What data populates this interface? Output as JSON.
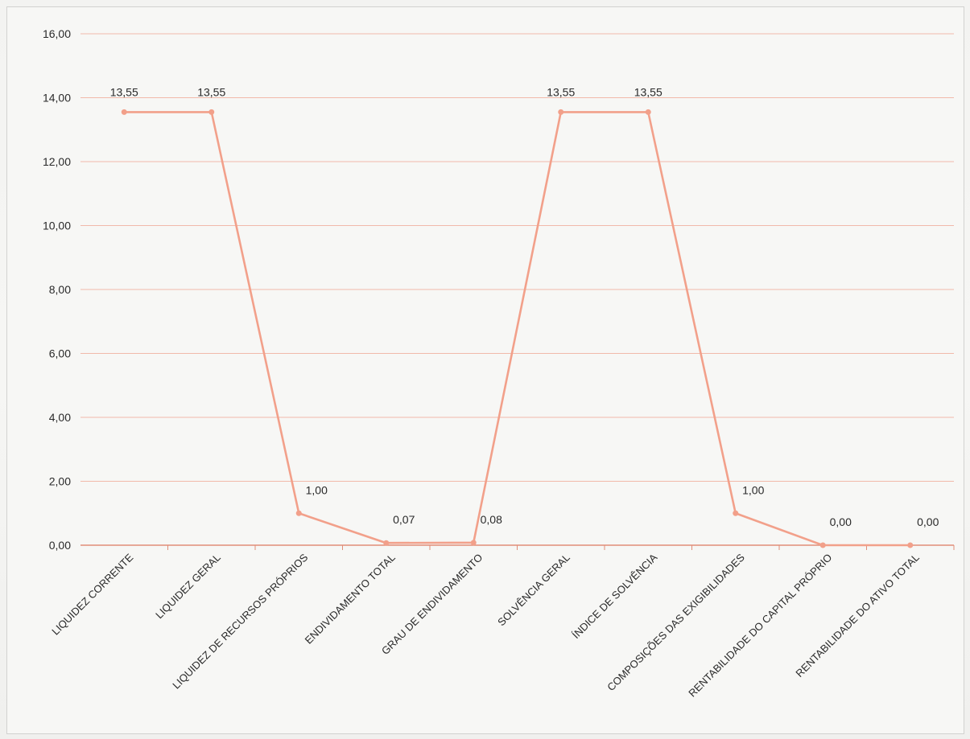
{
  "chart_data": {
    "type": "line",
    "title": "",
    "xlabel": "",
    "ylabel": "",
    "ylim": [
      0,
      16
    ],
    "y_ticks": [
      "0,00",
      "2,00",
      "4,00",
      "6,00",
      "8,00",
      "10,00",
      "12,00",
      "14,00",
      "16,00"
    ],
    "grid": true,
    "legend": "none",
    "categories": [
      "LIQUIDEZ CORRENTE",
      "LIQUIDEZ GERAL",
      "LIQUIDEZ DE RECURSOS PRÓPRIOS",
      "ENDIVIDAMENTO TOTAL",
      "GRAU DE ENDIVIDAMENTO",
      "SOLVÊNCIA GERAL",
      "ÍNDICE DE SOLVÊNCIA",
      "COMPOSIÇÕES DAS EXIGIBILIDADES",
      "RENTABILIDADE DO CAPITAL PRÓPRIO",
      "RENTABILIDADE DO ATIVO TOTAL"
    ],
    "series": [
      {
        "values": [
          13.55,
          13.55,
          1.0,
          0.07,
          0.08,
          13.55,
          13.55,
          1.0,
          0.0,
          0.0
        ],
        "labels": [
          "13,55",
          "13,55",
          "1,00",
          "0,07",
          "0,08",
          "13,55",
          "13,55",
          "1,00",
          "0,00",
          "0,00"
        ],
        "color": "#f2a08a"
      }
    ],
    "grid_color": "#f1b9aa",
    "axis_color": "#e08d78"
  }
}
